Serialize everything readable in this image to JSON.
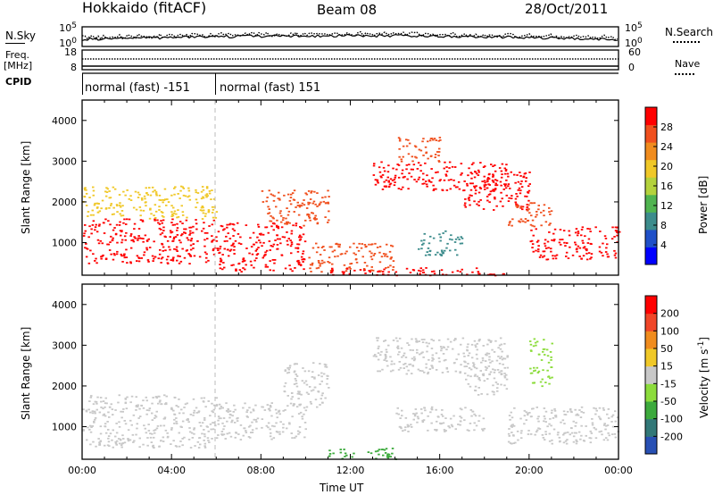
{
  "header": {
    "station": "Hokkaido (fitACF)",
    "beam": "Beam 08",
    "date": "28/Oct/2011"
  },
  "params": {
    "nsky_label": "N.Sky",
    "nsearch_label": "N.Search",
    "freq_label": "Freq.",
    "freq_unit": "[MHz]",
    "nave_label": "Nave",
    "cpid_label": "CPID",
    "noise_ticks_left": [
      "10^5",
      "10^0"
    ],
    "noise_ticks_right": [
      "10^5",
      "10^0"
    ],
    "freq_ticks": [
      "18",
      "8"
    ],
    "nave_ticks": [
      "60",
      "0"
    ],
    "cpid_segments": [
      {
        "label": "normal (fast) -151",
        "start_hour": 0,
        "end_hour": 6
      },
      {
        "label": "normal (fast) 151",
        "start_hour": 6,
        "end_hour": 24
      }
    ]
  },
  "chart_data": [
    {
      "type": "heatmap",
      "title": "",
      "quantity": "Power",
      "colorbar_label": "Power [dB]",
      "colorbar_ticks": [
        4,
        8,
        12,
        16,
        20,
        24,
        28
      ],
      "colorbar_range": [
        0,
        32
      ],
      "colorbar_colors": [
        "#0000ff",
        "#2050c8",
        "#3c8c8c",
        "#50b450",
        "#b4d23c",
        "#f0c828",
        "#f08c1e",
        "#f0501e",
        "#ff0000"
      ],
      "xlabel": "",
      "ylabel": "Slant Range [km]",
      "xlim": [
        0,
        24
      ],
      "ylim": [
        200,
        4500
      ],
      "yticks": [
        1000,
        2000,
        3000,
        4000
      ],
      "scatter_regions": [
        {
          "x": [
            0,
            6
          ],
          "y": [
            500,
            1600
          ],
          "color": "#ff0000"
        },
        {
          "x": [
            0,
            6
          ],
          "y": [
            1600,
            2400
          ],
          "color": "#f0c828"
        },
        {
          "x": [
            6,
            10
          ],
          "y": [
            300,
            1500
          ],
          "color": "#ff0000"
        },
        {
          "x": [
            8,
            11
          ],
          "y": [
            1400,
            2300
          ],
          "color": "#f0501e"
        },
        {
          "x": [
            10,
            14
          ],
          "y": [
            300,
            1000
          ],
          "color": "#f0501e"
        },
        {
          "x": [
            11,
            19
          ],
          "y": [
            200,
            400
          ],
          "color": "#ff0000"
        },
        {
          "x": [
            13,
            19
          ],
          "y": [
            2300,
            3000
          ],
          "color": "#ff0000"
        },
        {
          "x": [
            14,
            16
          ],
          "y": [
            3000,
            3600
          ],
          "color": "#f0501e"
        },
        {
          "x": [
            15,
            17
          ],
          "y": [
            700,
            1300
          ],
          "color": "#3c8c8c"
        },
        {
          "x": [
            17,
            20
          ],
          "y": [
            1800,
            2800
          ],
          "color": "#ff0000"
        },
        {
          "x": [
            20,
            24
          ],
          "y": [
            600,
            1400
          ],
          "color": "#ff0000"
        },
        {
          "x": [
            19,
            21
          ],
          "y": [
            1400,
            2000
          ],
          "color": "#f0501e"
        }
      ]
    },
    {
      "type": "heatmap",
      "title": "",
      "quantity": "Velocity",
      "colorbar_label": "Velocity [m s^-1]",
      "colorbar_ticks": [
        "200",
        "100",
        "50",
        "15",
        "-15",
        "-50",
        "-100",
        "-200"
      ],
      "colorbar_colors": [
        "#2850b4",
        "#327878",
        "#3caa3c",
        "#8cdc3c",
        "#c8c8c8",
        "#f0c828",
        "#f08c1e",
        "#f04628",
        "#ff0000"
      ],
      "xlabel": "Time UT",
      "ylabel": "Slant Range [km]",
      "xlim": [
        0,
        24
      ],
      "ylim": [
        200,
        4500
      ],
      "xticks": [
        "00:00",
        "04:00",
        "08:00",
        "12:00",
        "16:00",
        "20:00",
        "00:00"
      ],
      "yticks": [
        1000,
        2000,
        3000,
        4000
      ],
      "scatter_regions": [
        {
          "x": [
            0,
            6
          ],
          "y": [
            500,
            1800
          ],
          "color": "#c8c8c8"
        },
        {
          "x": [
            6,
            10
          ],
          "y": [
            700,
            1600
          ],
          "color": "#c8c8c8"
        },
        {
          "x": [
            9,
            11
          ],
          "y": [
            1500,
            2600
          ],
          "color": "#c8c8c8"
        },
        {
          "x": [
            11,
            14
          ],
          "y": [
            200,
            500
          ],
          "color": "#3caa3c"
        },
        {
          "x": [
            13,
            19
          ],
          "y": [
            2300,
            3200
          ],
          "color": "#c8c8c8"
        },
        {
          "x": [
            14,
            18
          ],
          "y": [
            900,
            1500
          ],
          "color": "#c8c8c8"
        },
        {
          "x": [
            19,
            24
          ],
          "y": [
            600,
            1500
          ],
          "color": "#c8c8c8"
        },
        {
          "x": [
            20,
            21
          ],
          "y": [
            2000,
            3200
          ],
          "color": "#8cdc3c"
        },
        {
          "x": [
            17,
            19
          ],
          "y": [
            1800,
            2500
          ],
          "color": "#c8c8c8"
        }
      ]
    }
  ]
}
